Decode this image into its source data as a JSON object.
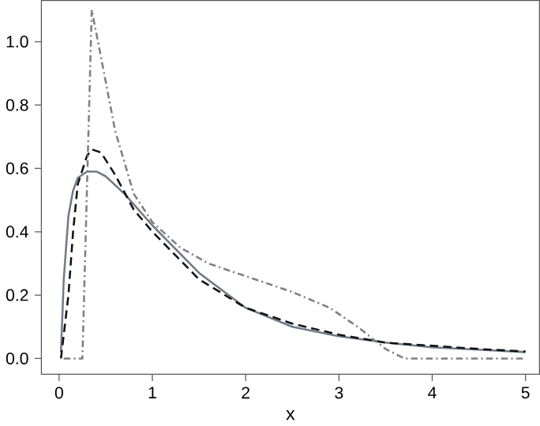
{
  "chart_data": {
    "type": "line",
    "xlabel": "x",
    "xlim": [
      -0.19,
      5.15
    ],
    "ylim": [
      -0.05,
      1.13
    ],
    "xticks": [
      0,
      1,
      2,
      3,
      4,
      5
    ],
    "yticks": [
      {
        "value": 0,
        "label": "0.0"
      },
      {
        "value": 0.2,
        "label": "0.2"
      },
      {
        "value": 0.4,
        "label": "0.4"
      },
      {
        "value": 0.6,
        "label": "0.6"
      },
      {
        "value": 0.8,
        "label": "0.8"
      },
      {
        "value": 1,
        "label": "1.0"
      }
    ],
    "grid": false,
    "marker": "none",
    "series": [
      {
        "color": "#6e7b87",
        "line_style": "solid",
        "x": [
          0.02,
          0.05,
          0.1,
          0.15,
          0.2,
          0.3,
          0.4,
          0.5,
          0.7,
          1.0,
          1.5,
          2.0,
          2.5,
          3.0,
          3.5,
          4.0,
          4.5,
          5.0
        ],
        "values": [
          0.02,
          0.25,
          0.45,
          0.53,
          0.57,
          0.59,
          0.59,
          0.575,
          0.52,
          0.42,
          0.27,
          0.16,
          0.1,
          0.07,
          0.05,
          0.035,
          0.028,
          0.02
        ]
      },
      {
        "color": "#111111",
        "line_style": "dashed",
        "x": [
          0.02,
          0.1,
          0.15,
          0.2,
          0.3,
          0.35,
          0.45,
          0.6,
          0.8,
          1.0,
          1.5,
          2.0,
          2.5,
          3.0,
          3.5,
          4.0,
          4.5,
          5.0
        ],
        "values": [
          0.0,
          0.2,
          0.4,
          0.55,
          0.64,
          0.66,
          0.65,
          0.58,
          0.47,
          0.4,
          0.25,
          0.16,
          0.11,
          0.075,
          0.05,
          0.04,
          0.03,
          0.022
        ]
      },
      {
        "color": "#7f7f7f",
        "line_style": "dashdot",
        "x": [
          0.05,
          0.25,
          0.3,
          0.35,
          0.45,
          0.6,
          0.8,
          1.0,
          1.3,
          1.6,
          2.0,
          2.5,
          2.9,
          3.2,
          3.5,
          3.7,
          5.0
        ],
        "values": [
          0.0,
          0.0,
          0.55,
          1.1,
          0.95,
          0.72,
          0.52,
          0.43,
          0.35,
          0.3,
          0.26,
          0.21,
          0.16,
          0.1,
          0.03,
          0.0,
          0.0
        ]
      }
    ]
  }
}
